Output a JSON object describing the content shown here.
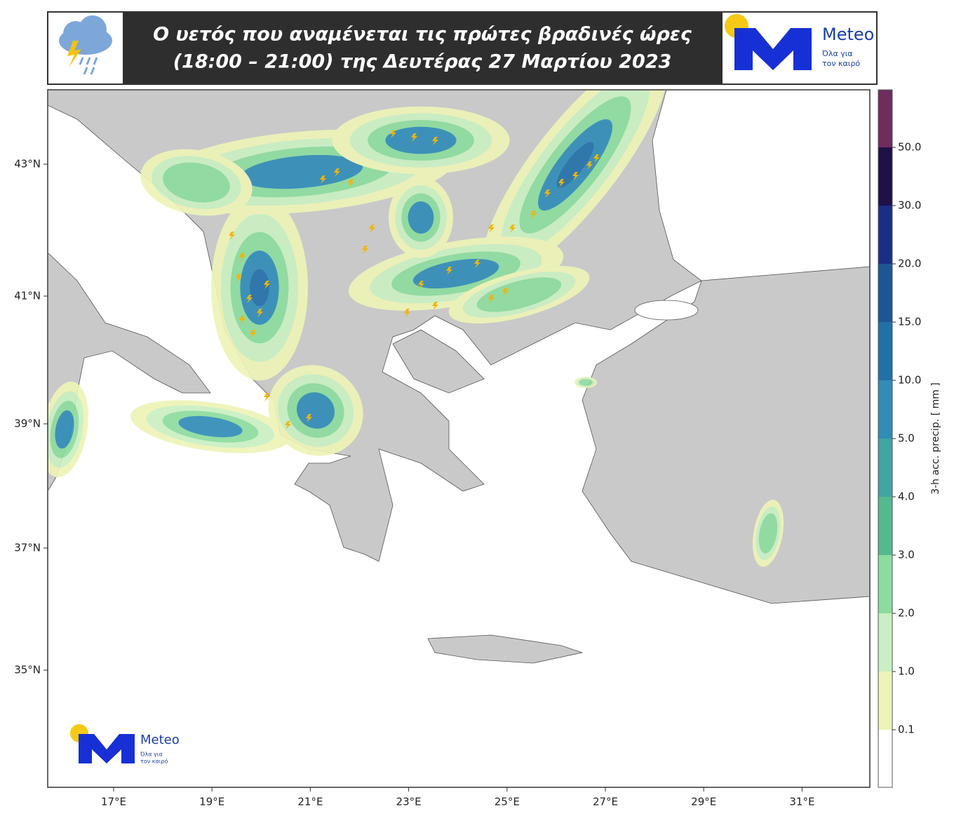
{
  "header": {
    "title_line1": "Ο υετός που αναμένεται τις πρώτες βραδινές ώρες",
    "title_line2": "(18:00 – 21:00) της Δευτέρας 27 Μαρτίου 2023"
  },
  "logo": {
    "brand": "Meteo",
    "tagline_line1": "Όλα για",
    "tagline_line2": "τον καιρό"
  },
  "map": {
    "lat_labels": [
      "43°N",
      "41°N",
      "39°N",
      "37°N",
      "35°N"
    ],
    "lon_labels": [
      "17°E",
      "19°E",
      "21°E",
      "23°E",
      "25°E",
      "27°E",
      "29°E",
      "31°E"
    ]
  },
  "colorbar": {
    "label": "3-h acc. precip. [ mm ]",
    "ticks": [
      "50.0",
      "30.0",
      "20.0",
      "15.0",
      "10.0",
      "5.0",
      "4.0",
      "3.0",
      "2.0",
      "1.0",
      "0.1"
    ],
    "colors": [
      "#6e2d5e",
      "#1f1048",
      "#1b2e86",
      "#1e5596",
      "#2270a8",
      "#318cb6",
      "#3ea6a3",
      "#55b98f",
      "#8cdc9e",
      "#c9efc2",
      "#eef4b6",
      "#ffffff"
    ]
  }
}
